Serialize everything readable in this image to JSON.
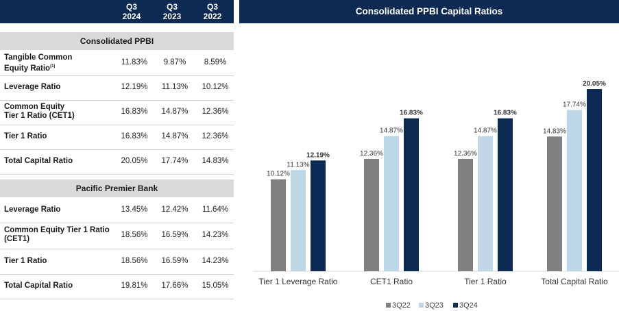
{
  "table": {
    "columns": [
      {
        "line1": "Q3",
        "line2": "2024"
      },
      {
        "line1": "Q3",
        "line2": "2023"
      },
      {
        "line1": "Q3",
        "line2": "2022"
      }
    ],
    "sections": [
      {
        "title": "Consolidated PPBI",
        "rows": [
          {
            "label": [
              "Tangible Common",
              "Equity Ratio"
            ],
            "footnote": "(1)",
            "values": [
              "11.83%",
              "9.87%",
              "8.59%"
            ]
          },
          {
            "label": [
              "Leverage Ratio"
            ],
            "values": [
              "12.19%",
              "11.13%",
              "10.12%"
            ]
          },
          {
            "label": [
              "Common Equity",
              "Tier 1 Ratio (CET1)"
            ],
            "values": [
              "16.83%",
              "14.87%",
              "12.36%"
            ]
          },
          {
            "label": [
              "Tier 1 Ratio"
            ],
            "values": [
              "16.83%",
              "14.87%",
              "12.36%"
            ]
          },
          {
            "label": [
              "Total Capital Ratio"
            ],
            "values": [
              "20.05%",
              "17.74%",
              "14.83%"
            ]
          }
        ]
      },
      {
        "title": "Pacific Premier Bank",
        "rows": [
          {
            "label": [
              "Leverage Ratio"
            ],
            "values": [
              "13.45%",
              "12.42%",
              "11.64%"
            ]
          },
          {
            "label": [
              "Common Equity Tier 1 Ratio",
              "(CET1)"
            ],
            "values": [
              "18.56%",
              "16.59%",
              "14.23%"
            ]
          },
          {
            "label": [
              "Tier 1 Ratio"
            ],
            "values": [
              "18.56%",
              "16.59%",
              "14.23%"
            ]
          },
          {
            "label": [
              "Total Capital Ratio"
            ],
            "values": [
              "19.81%",
              "17.66%",
              "15.05%"
            ]
          }
        ]
      }
    ]
  },
  "chart_data": {
    "type": "bar",
    "title": "Consolidated PPBI Capital Ratios",
    "categories": [
      "Tier 1 Leverage Ratio",
      "CET1 Ratio",
      "Tier 1 Ratio",
      "Total Capital Ratio"
    ],
    "series": [
      {
        "name": "3Q22",
        "values": [
          10.12,
          12.36,
          12.36,
          14.83
        ],
        "labels": [
          "10.12%",
          "12.36%",
          "12.36%",
          "14.83%"
        ],
        "color": "#808080",
        "bold": false
      },
      {
        "name": "3Q23",
        "values": [
          11.13,
          14.87,
          14.87,
          17.74
        ],
        "labels": [
          "11.13%",
          "14.87%",
          "14.87%",
          "17.74%"
        ],
        "color": "#bdd7e7",
        "bold": false
      },
      {
        "name": "3Q24",
        "values": [
          12.19,
          16.83,
          16.83,
          20.05
        ],
        "labels": [
          "12.19%",
          "16.83%",
          "16.83%",
          "20.05%"
        ],
        "color": "#0d2a52",
        "bold": true
      }
    ],
    "ylim": [
      0,
      20.05
    ],
    "grid": false,
    "legend": "bottom-center"
  }
}
